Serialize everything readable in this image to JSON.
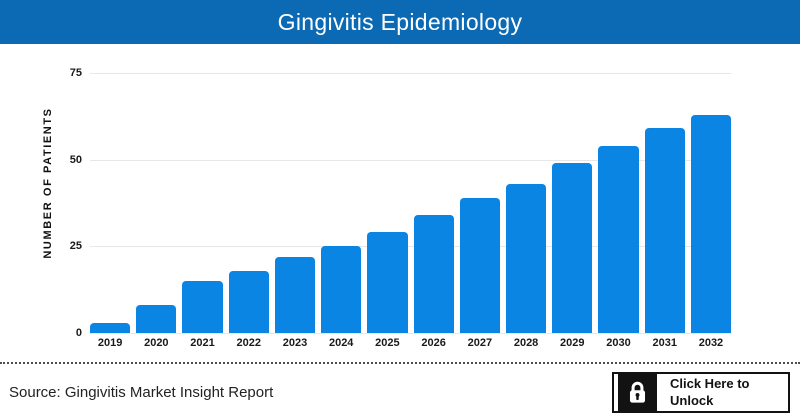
{
  "header": {
    "title": "Gingivitis Epidemiology",
    "bg_color": "#0b6ab3",
    "text_color": "#ffffff"
  },
  "chart_data": {
    "type": "bar",
    "title": "Gingivitis Epidemiology",
    "categories": [
      "2019",
      "2020",
      "2021",
      "2022",
      "2023",
      "2024",
      "2025",
      "2026",
      "2027",
      "2028",
      "2029",
      "2030",
      "2031",
      "2032"
    ],
    "values": [
      3,
      8,
      15,
      18,
      22,
      25,
      29,
      34,
      39,
      43,
      49,
      54,
      59,
      63
    ],
    "xlabel": "",
    "ylabel": "NUMBER OF PATIENTS",
    "yticks": [
      0,
      25,
      50,
      75
    ],
    "ylim": [
      0,
      75
    ],
    "grid": true,
    "legend": false,
    "bar_color": "#0a85e4",
    "grid_color": "#e7e7e7"
  },
  "footer": {
    "source": "Source: Gingivitis Market Insight Report",
    "unlock_label": "Click Here to Unlock",
    "lock_icon": "padlock"
  }
}
